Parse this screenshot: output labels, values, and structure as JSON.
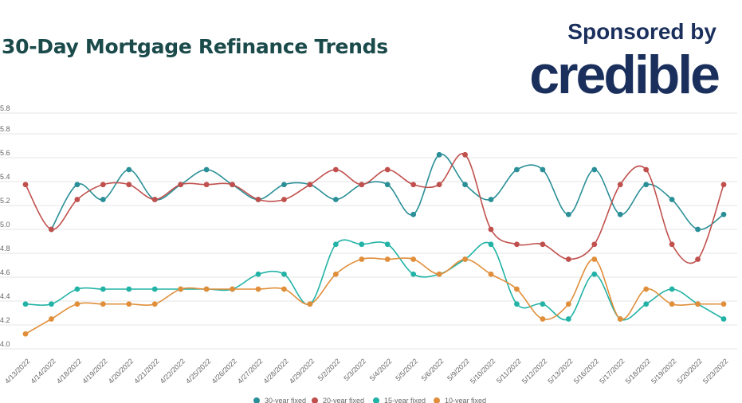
{
  "header": {
    "title": "30-Day Mortgage Refinance Trends",
    "sponsor_text": "Sponsored by",
    "brand": "credible"
  },
  "colors": {
    "title": "#1b4a4a",
    "brand": "#1a2f5c",
    "grid": "#e6e6e6",
    "tick": "#666666"
  },
  "chart_data": {
    "type": "line",
    "title": "30-Day Mortgage Refinance Trends",
    "xlabel": "",
    "ylabel": "",
    "ylim": [
      4.0,
      5.8
    ],
    "yticks": [
      "4.0",
      "4.2",
      "4.4",
      "4.6",
      "4.8",
      "5.0",
      "5.2",
      "5.4",
      "5.6",
      "5.8",
      "5.8"
    ],
    "grid": true,
    "legend_position": "bottom",
    "categories": [
      "4/13/2022",
      "4/14/2022",
      "4/18/2022",
      "4/19/2022",
      "4/20/2022",
      "4/21/2022",
      "4/22/2022",
      "4/25/2022",
      "4/26/2022",
      "4/27/2022",
      "4/28/2022",
      "4/29/2022",
      "5/2/2022",
      "5/3/2022",
      "5/4/2022",
      "5/5/2022",
      "5/6/2022",
      "5/9/2022",
      "5/10/2022",
      "5/11/2022",
      "5/12/2022",
      "5/13/2022",
      "5/16/2022",
      "5/17/2022",
      "5/18/2022",
      "5/19/2022",
      "5/20/2022",
      "5/23/2022"
    ],
    "series": [
      {
        "name": "30-year fixed",
        "color": "#2a8f97",
        "values": [
          null,
          5.0,
          5.375,
          5.25,
          5.5,
          5.25,
          5.375,
          5.5,
          5.375,
          5.25,
          5.375,
          5.375,
          5.25,
          5.375,
          5.375,
          5.125,
          5.625,
          5.375,
          5.25,
          5.5,
          5.5,
          5.125,
          5.5,
          5.125,
          5.375,
          5.25,
          5.0,
          5.125
        ]
      },
      {
        "name": "20-year fixed",
        "color": "#c0504d",
        "values": [
          5.375,
          5.0,
          5.25,
          5.375,
          5.375,
          5.25,
          5.375,
          5.375,
          5.375,
          5.25,
          5.25,
          5.375,
          5.5,
          5.375,
          5.5,
          5.375,
          5.375,
          5.625,
          5.0,
          4.875,
          4.875,
          4.75,
          4.875,
          5.375,
          5.5,
          4.875,
          4.75,
          5.375
        ]
      },
      {
        "name": "15-year fixed",
        "color": "#22b3a6",
        "values": [
          4.375,
          4.375,
          4.5,
          4.5,
          4.5,
          4.5,
          4.5,
          4.5,
          4.5,
          4.625,
          4.625,
          4.375,
          4.875,
          4.875,
          4.875,
          4.625,
          4.625,
          4.75,
          4.875,
          4.375,
          4.375,
          4.25,
          4.625,
          4.25,
          4.375,
          4.5,
          4.375,
          4.25
        ]
      },
      {
        "name": "10-year fixed",
        "color": "#e08e3a",
        "values": [
          4.125,
          4.25,
          4.375,
          4.375,
          4.375,
          4.375,
          4.5,
          4.5,
          4.5,
          4.5,
          4.5,
          4.375,
          4.625,
          4.75,
          4.75,
          4.75,
          4.625,
          4.75,
          4.625,
          4.5,
          4.25,
          4.375,
          4.75,
          4.25,
          4.5,
          4.375,
          4.375,
          4.375
        ]
      }
    ]
  }
}
